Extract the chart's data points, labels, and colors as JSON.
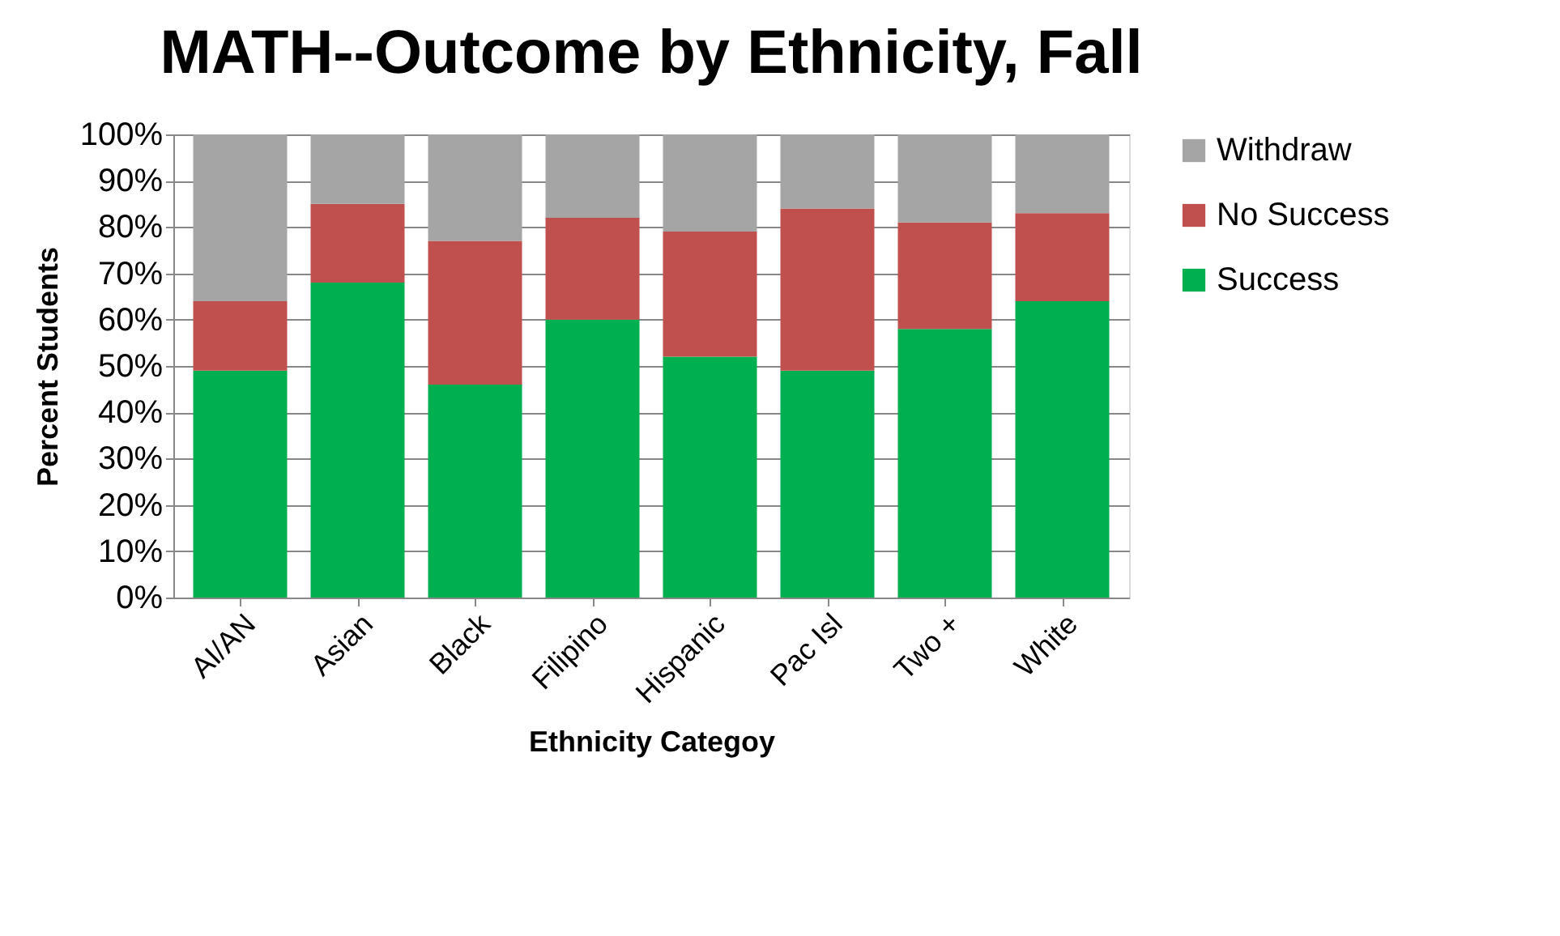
{
  "chart_data": {
    "type": "bar",
    "stacked": true,
    "title": "MATH--Outcome by Ethnicity, Fall",
    "xlabel": "Ethnicity Categoy",
    "ylabel": "Percent Students",
    "categories": [
      "AI/AN",
      "Asian",
      "Black",
      "Filipino",
      "Hispanic",
      "Pac Isl",
      "Two +",
      "White"
    ],
    "series": [
      {
        "name": "Success",
        "color": "#00b050",
        "values": [
          49,
          68,
          46,
          60,
          52,
          49,
          58,
          64
        ]
      },
      {
        "name": "No Success",
        "color": "#c0504d",
        "values": [
          15,
          17,
          31,
          22,
          27,
          35,
          23,
          19
        ]
      },
      {
        "name": "Withdraw",
        "color": "#a5a5a5",
        "values": [
          36,
          15,
          23,
          18,
          21,
          16,
          19,
          17
        ]
      }
    ],
    "ylim": [
      0,
      100
    ],
    "yticks": [
      {
        "value": 0,
        "label": "0%"
      },
      {
        "value": 10,
        "label": "10%"
      },
      {
        "value": 20,
        "label": "20%"
      },
      {
        "value": 30,
        "label": "30%"
      },
      {
        "value": 40,
        "label": "40%"
      },
      {
        "value": 50,
        "label": "50%"
      },
      {
        "value": 60,
        "label": "60%"
      },
      {
        "value": 70,
        "label": "70%"
      },
      {
        "value": 80,
        "label": "80%"
      },
      {
        "value": 90,
        "label": "90%"
      },
      {
        "value": 100,
        "label": "100%"
      }
    ],
    "grid": "y",
    "legend": "right"
  }
}
